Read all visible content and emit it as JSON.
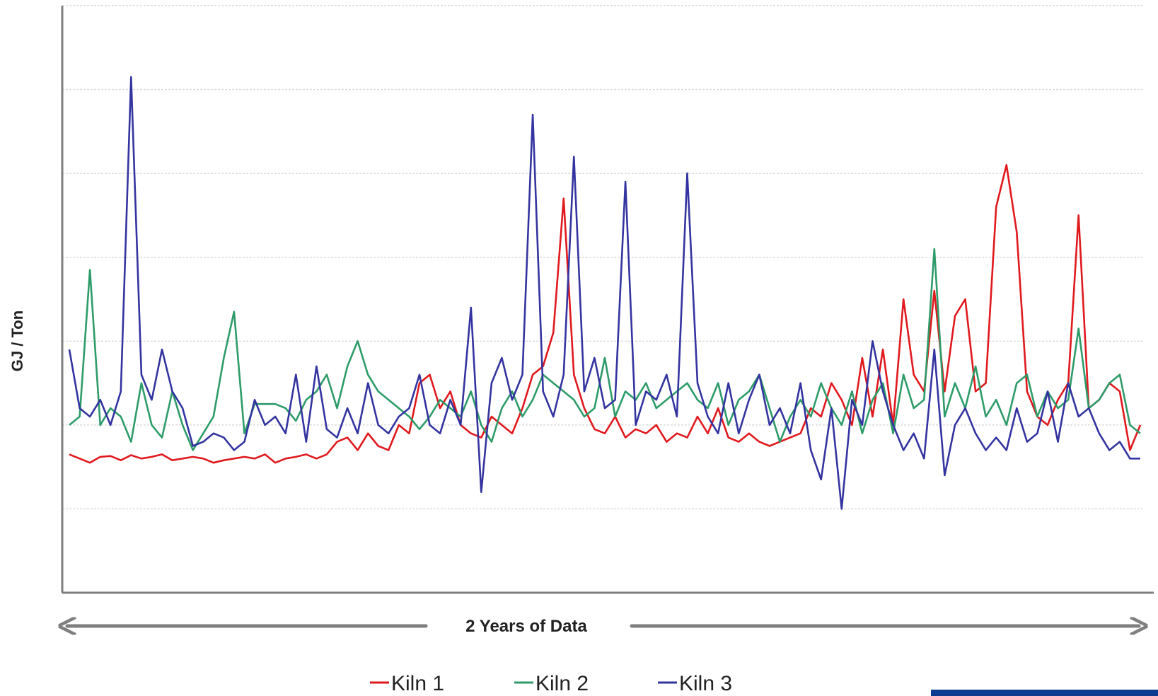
{
  "chart_data": {
    "type": "line",
    "title": "",
    "ylabel": "GJ / Ton",
    "xlabel": "2 Years of Data",
    "ylim": [
      0,
      7
    ],
    "y_gridlines": [
      1,
      2,
      3,
      4,
      5,
      6,
      7
    ],
    "grid": true,
    "legend_position": "bottom",
    "x": [
      0,
      1,
      2,
      3,
      4,
      5,
      6,
      7,
      8,
      9,
      10,
      11,
      12,
      13,
      14,
      15,
      16,
      17,
      18,
      19,
      20,
      21,
      22,
      23,
      24,
      25,
      26,
      27,
      28,
      29,
      30,
      31,
      32,
      33,
      34,
      35,
      36,
      37,
      38,
      39,
      40,
      41,
      42,
      43,
      44,
      45,
      46,
      47,
      48,
      49,
      50,
      51,
      52,
      53,
      54,
      55,
      56,
      57,
      58,
      59,
      60,
      61,
      62,
      63,
      64,
      65,
      66,
      67,
      68,
      69,
      70,
      71,
      72,
      73,
      74,
      75,
      76,
      77,
      78,
      79,
      80,
      81,
      82,
      83,
      84,
      85,
      86,
      87,
      88,
      89,
      90,
      91,
      92,
      93,
      94,
      95,
      96,
      97,
      98,
      99,
      100,
      101,
      102,
      103,
      104
    ],
    "series": [
      {
        "name": "Kiln 1",
        "color": "#e0191e",
        "values": [
          1.65,
          1.6,
          1.55,
          1.62,
          1.63,
          1.58,
          1.64,
          1.6,
          1.62,
          1.65,
          1.58,
          1.6,
          1.62,
          1.6,
          1.55,
          1.58,
          1.6,
          1.62,
          1.6,
          1.65,
          1.55,
          1.6,
          1.62,
          1.65,
          1.6,
          1.65,
          1.8,
          1.85,
          1.7,
          1.9,
          1.75,
          1.7,
          2.0,
          1.9,
          2.5,
          2.6,
          2.2,
          2.4,
          2.0,
          1.9,
          1.85,
          2.1,
          2.0,
          1.9,
          2.2,
          2.6,
          2.7,
          3.1,
          4.7,
          2.6,
          2.2,
          1.95,
          1.9,
          2.1,
          1.85,
          1.95,
          1.9,
          2.0,
          1.8,
          1.9,
          1.85,
          2.1,
          1.9,
          2.2,
          1.85,
          1.8,
          1.9,
          1.8,
          1.75,
          1.8,
          1.85,
          1.9,
          2.2,
          2.1,
          2.5,
          2.3,
          2.0,
          2.8,
          2.1,
          2.9,
          2.0,
          3.5,
          2.6,
          2.4,
          3.6,
          2.4,
          3.3,
          3.5,
          2.4,
          2.5,
          4.6,
          5.1,
          4.3,
          2.4,
          2.1,
          2.0,
          2.3,
          2.5,
          4.5,
          2.2,
          2.3,
          2.5,
          2.4,
          1.7,
          2.0
        ]
      },
      {
        "name": "Kiln 2",
        "color": "#2e9b69",
        "values": [
          2.0,
          2.1,
          3.85,
          2.0,
          2.2,
          2.1,
          1.8,
          2.5,
          2.0,
          1.85,
          2.4,
          2.0,
          1.7,
          1.9,
          2.1,
          2.8,
          3.35,
          1.9,
          2.25,
          2.25,
          2.25,
          2.2,
          2.05,
          2.3,
          2.4,
          2.6,
          2.2,
          2.7,
          3.0,
          2.6,
          2.4,
          2.3,
          2.2,
          2.1,
          1.95,
          2.1,
          2.3,
          2.2,
          2.1,
          2.4,
          2.0,
          1.8,
          2.2,
          2.4,
          2.1,
          2.3,
          2.6,
          2.5,
          2.4,
          2.3,
          2.1,
          2.2,
          2.8,
          2.1,
          2.4,
          2.3,
          2.5,
          2.2,
          2.3,
          2.4,
          2.5,
          2.3,
          2.2,
          2.5,
          2.0,
          2.3,
          2.4,
          2.6,
          2.2,
          1.8,
          2.1,
          2.3,
          2.1,
          2.5,
          2.2,
          2.0,
          2.4,
          1.9,
          2.3,
          2.5,
          1.9,
          2.6,
          2.2,
          2.3,
          4.1,
          2.1,
          2.5,
          2.2,
          2.7,
          2.1,
          2.3,
          2.0,
          2.5,
          2.6,
          2.1,
          2.4,
          2.2,
          2.3,
          3.15,
          2.2,
          2.3,
          2.5,
          2.6,
          2.0,
          1.9
        ]
      },
      {
        "name": "Kiln 3",
        "color": "#3434a0",
        "values": [
          2.9,
          2.2,
          2.1,
          2.3,
          2.0,
          2.4,
          6.15,
          2.6,
          2.3,
          2.9,
          2.4,
          2.2,
          1.75,
          1.8,
          1.9,
          1.85,
          1.7,
          1.8,
          2.3,
          2.0,
          2.1,
          1.9,
          2.6,
          1.8,
          2.7,
          1.95,
          1.85,
          2.2,
          1.9,
          2.5,
          2.0,
          1.9,
          2.1,
          2.2,
          2.6,
          2.0,
          1.9,
          2.3,
          2.0,
          3.4,
          1.2,
          2.5,
          2.8,
          2.3,
          2.6,
          5.7,
          2.4,
          2.1,
          2.6,
          5.2,
          2.4,
          2.8,
          2.2,
          2.3,
          4.9,
          2.0,
          2.4,
          2.3,
          2.6,
          2.1,
          5.0,
          2.5,
          2.1,
          1.9,
          2.5,
          1.9,
          2.3,
          2.6,
          2.0,
          2.2,
          1.9,
          2.5,
          1.7,
          1.35,
          2.2,
          1.0,
          2.3,
          2.0,
          3.0,
          2.4,
          2.0,
          1.7,
          1.9,
          1.6,
          2.9,
          1.4,
          2.0,
          2.2,
          1.9,
          1.7,
          1.85,
          1.7,
          2.2,
          1.8,
          1.9,
          2.4,
          1.8,
          2.5,
          2.1,
          2.2,
          1.9,
          1.7,
          1.8,
          1.6,
          1.6
        ]
      }
    ]
  }
}
